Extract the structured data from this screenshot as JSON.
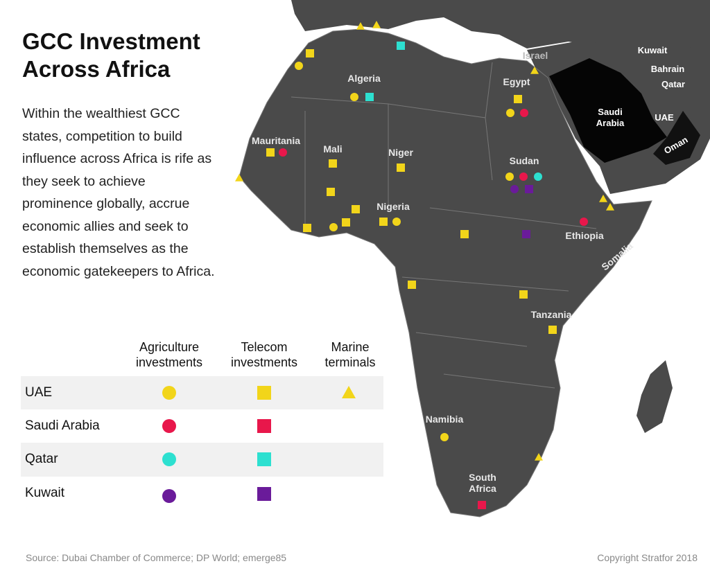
{
  "header": {
    "title": "GCC Investment Across Africa",
    "description": "Within the wealthiest GCC states, competition to build influence across Africa is rife as they seek to achieve prominence globally, accrue economic allies and seek to establish themselves as the economic gatekeepers to Africa."
  },
  "legend": {
    "columns": [
      "Agriculture investments",
      "Telecom investments",
      "Marine terminals"
    ],
    "rows": [
      "UAE",
      "Saudi Arabia",
      "Qatar",
      "Kuwait"
    ]
  },
  "map": {
    "labels": [
      "Israel",
      "Egypt",
      "Algeria",
      "Mauritania",
      "Mali",
      "Niger",
      "Sudan",
      "Nigeria",
      "Ethiopia",
      "Somalia",
      "Tanzania",
      "Namibia",
      "South Africa",
      "Kuwait",
      "Bahrain",
      "Qatar",
      "Saudi Arabia",
      "UAE",
      "Oman"
    ]
  },
  "footer": {
    "source": "Source: Dubai Chamber of Commerce; DP World; emerge85",
    "copyright": "Copyright Stratfor 2018"
  }
}
